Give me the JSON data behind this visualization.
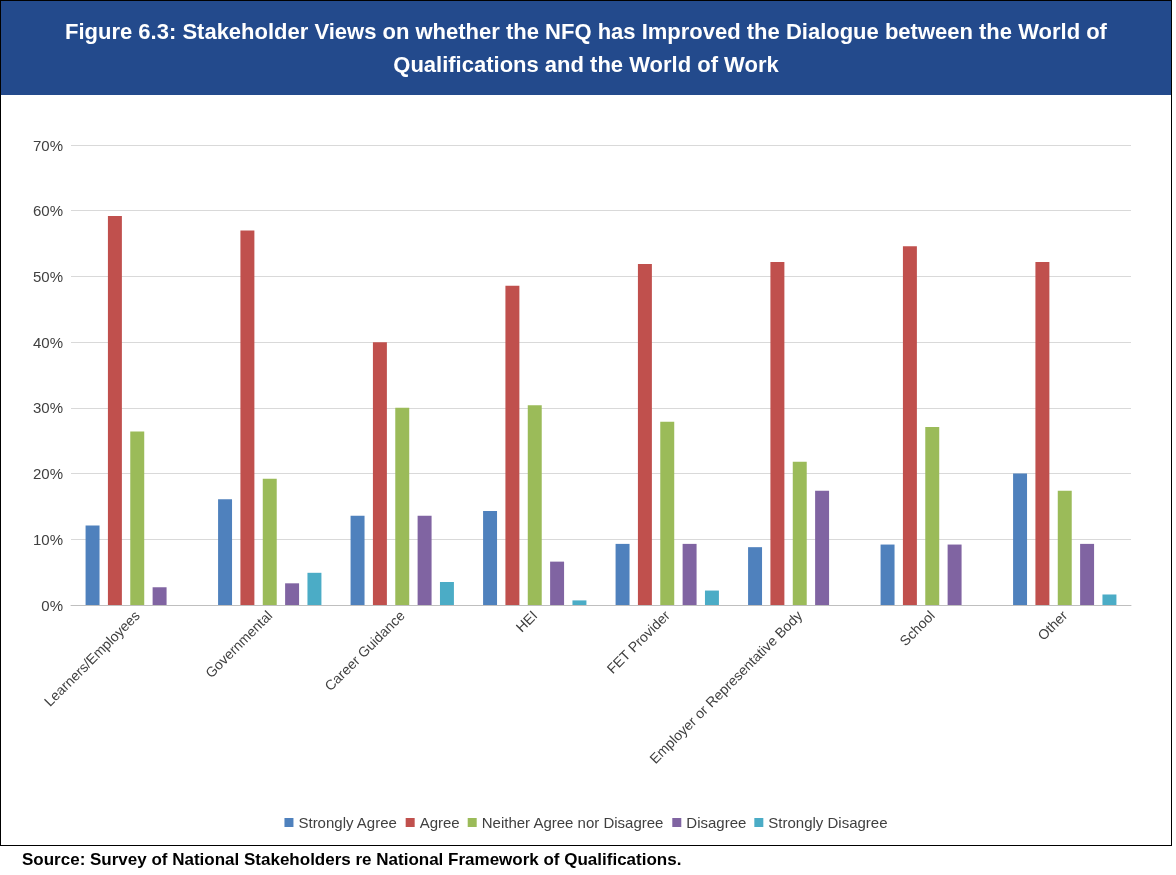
{
  "chart_data": {
    "type": "bar",
    "title": "Figure 6.3: Stakeholder Views on whether the NFQ has Improved the Dialogue between the World of Qualifications and the World of Work",
    "categories": [
      "Learners/Employees",
      "Governmental",
      "Career Guidance",
      "HEI",
      "FET Provider",
      "Employer or Representative Body",
      "School",
      "Other"
    ],
    "series": [
      {
        "name": "Strongly Agree",
        "color": "#4f81bd",
        "values": [
          12.1,
          16.1,
          13.6,
          14.3,
          9.3,
          8.8,
          9.2,
          20.0
        ]
      },
      {
        "name": "Agree",
        "color": "#c0504d",
        "values": [
          59.2,
          57.0,
          40.0,
          48.6,
          51.9,
          52.2,
          54.6,
          52.2
        ]
      },
      {
        "name": "Neither Agree nor Disagree",
        "color": "#9bbb59",
        "values": [
          26.4,
          19.2,
          30.0,
          30.4,
          27.9,
          21.8,
          27.1,
          17.4
        ]
      },
      {
        "name": "Disagree",
        "color": "#8064a2",
        "values": [
          2.7,
          3.3,
          13.6,
          6.6,
          9.3,
          17.4,
          9.2,
          9.3
        ]
      },
      {
        "name": "Strongly Disagree",
        "color": "#4bacc6",
        "values": [
          0,
          4.9,
          3.5,
          0.7,
          2.2,
          0,
          0,
          1.6
        ]
      }
    ],
    "ylim": [
      0,
      70
    ],
    "yticks": [
      {
        "value": 0,
        "label": "0%"
      },
      {
        "value": 10,
        "label": "10%"
      },
      {
        "value": 20,
        "label": "20%"
      },
      {
        "value": 30,
        "label": "30%"
      },
      {
        "value": 40,
        "label": "40%"
      },
      {
        "value": 50,
        "label": "50%"
      },
      {
        "value": 60,
        "label": "60%"
      },
      {
        "value": 70,
        "label": "70%"
      }
    ],
    "grid": "y",
    "legend": "bottom",
    "annotations": [
      "Source: Survey of National Stakeholders re National Framework of Qualifications."
    ]
  }
}
